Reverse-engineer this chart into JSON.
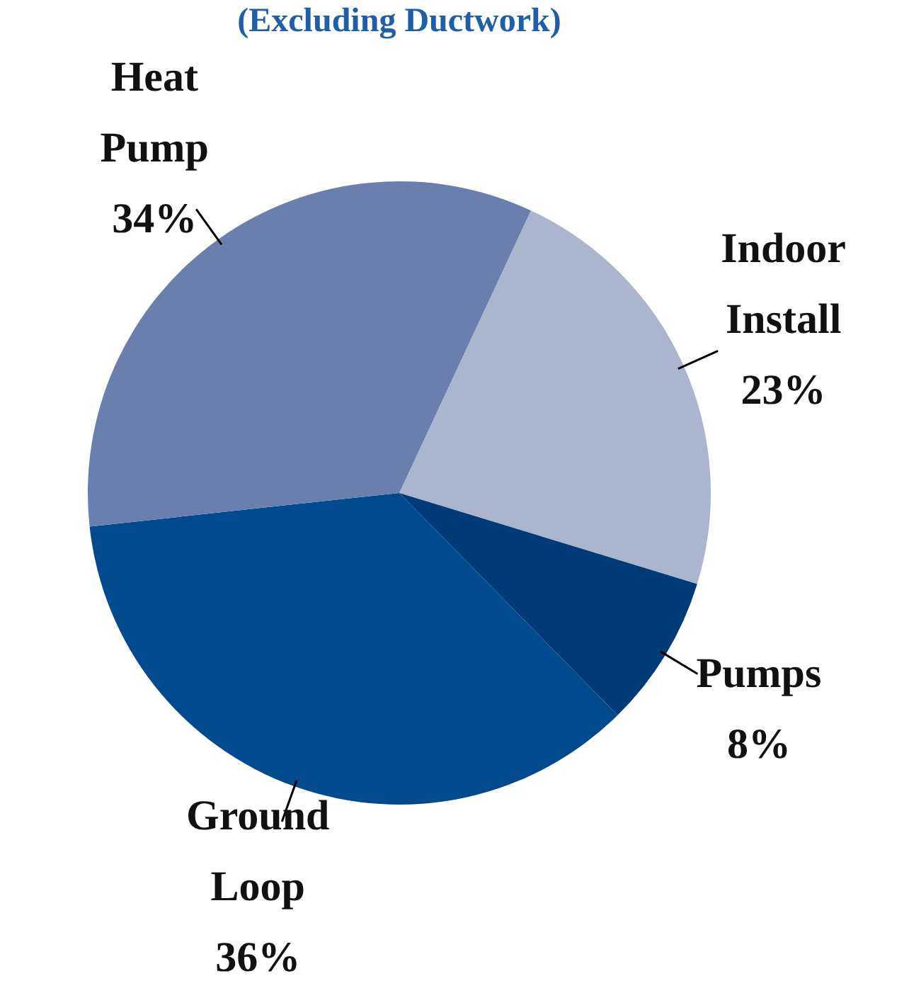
{
  "chart_data": {
    "type": "pie",
    "subtitle": "(Excluding Ductwork)",
    "categories": [
      "Indoor Install",
      "Pumps",
      "Ground Loop",
      "Heat Pump"
    ],
    "values": [
      23,
      8,
      36,
      34
    ],
    "value_labels": [
      "23%",
      "8%",
      "36%",
      "34%"
    ],
    "colors": [
      "#abb5cd",
      "#003b78",
      "#004a8d",
      "#6a7fad"
    ],
    "legend": false
  }
}
